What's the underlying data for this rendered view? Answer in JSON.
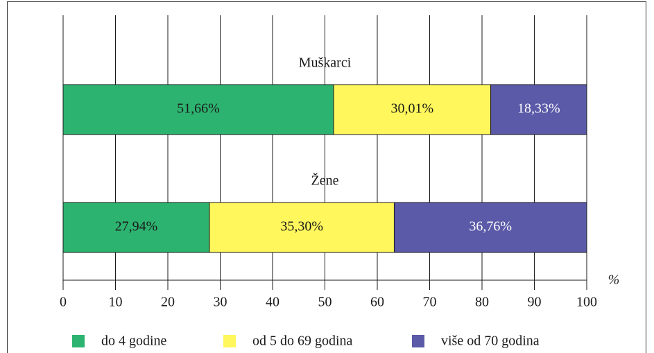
{
  "chart_data": {
    "type": "stacked_bar_h",
    "categories": [
      "Muškarci",
      "Žene"
    ],
    "series": [
      {
        "name": "do 4 godine",
        "color": "#2db370",
        "label_color": "#1a1a1a",
        "values": [
          51.66,
          27.94
        ],
        "value_labels": [
          "51,66%",
          "27,94%"
        ]
      },
      {
        "name": "od 5 do 69 godina",
        "color": "#fff75c",
        "label_color": "#1a1a1a",
        "values": [
          30.01,
          35.3
        ],
        "value_labels": [
          "30,01%",
          "35,30%"
        ]
      },
      {
        "name": "više od 70 godina",
        "color": "#5b5aa8",
        "label_color": "#ffffff",
        "values": [
          18.33,
          36.76
        ],
        "value_labels": [
          "18,33%",
          "36,76%"
        ]
      }
    ],
    "xlim": [
      0,
      100
    ],
    "xticks": [
      0,
      10,
      20,
      30,
      40,
      50,
      60,
      70,
      80,
      90,
      100
    ],
    "xlabel": "%",
    "grid": true
  }
}
